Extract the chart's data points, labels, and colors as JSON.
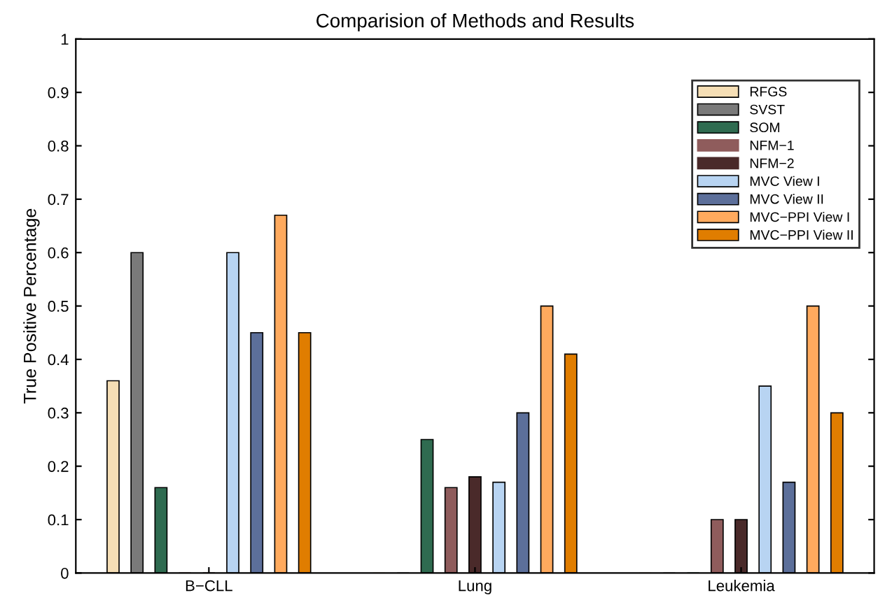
{
  "chart_data": {
    "type": "bar",
    "title": "Comparision of Methods and Results",
    "ylabel": "True Positive Percentage",
    "categories": [
      "B−CLL",
      "Lung",
      "Leukemia"
    ],
    "series": [
      {
        "name": "RFGS",
        "color": "#f5deb5",
        "values": [
          0.36,
          0,
          0
        ]
      },
      {
        "name": "SVST",
        "color": "#7a7a7a",
        "values": [
          0.6,
          0,
          0
        ]
      },
      {
        "name": "SOM",
        "color": "#2f6b50",
        "values": [
          0.16,
          0.25,
          0
        ]
      },
      {
        "name": "NFM−1",
        "color": "#8f5c5c",
        "values": [
          0,
          0.16,
          0.1
        ]
      },
      {
        "name": "NFM−2",
        "color": "#4a2a2a",
        "values": [
          0,
          0.18,
          0.1
        ]
      },
      {
        "name": "MVC View I",
        "color": "#b8d4f2",
        "values": [
          0.6,
          0.17,
          0.35
        ]
      },
      {
        "name": "MVC View II",
        "color": "#5c6f9a",
        "values": [
          0.45,
          0.3,
          0.17
        ]
      },
      {
        "name": "MVC−PPI View I",
        "color": "#ffaa5e",
        "values": [
          0.67,
          0.5,
          0.5
        ]
      },
      {
        "name": "MVC−PPI View II",
        "color": "#e07d00",
        "values": [
          0.45,
          0.41,
          0.3
        ]
      }
    ],
    "ylim": [
      0,
      1
    ],
    "yticks": [
      0,
      0.1,
      0.2,
      0.3,
      0.4,
      0.5,
      0.6,
      0.7,
      0.8,
      0.9,
      1
    ],
    "legend": "top right",
    "grid": false
  }
}
